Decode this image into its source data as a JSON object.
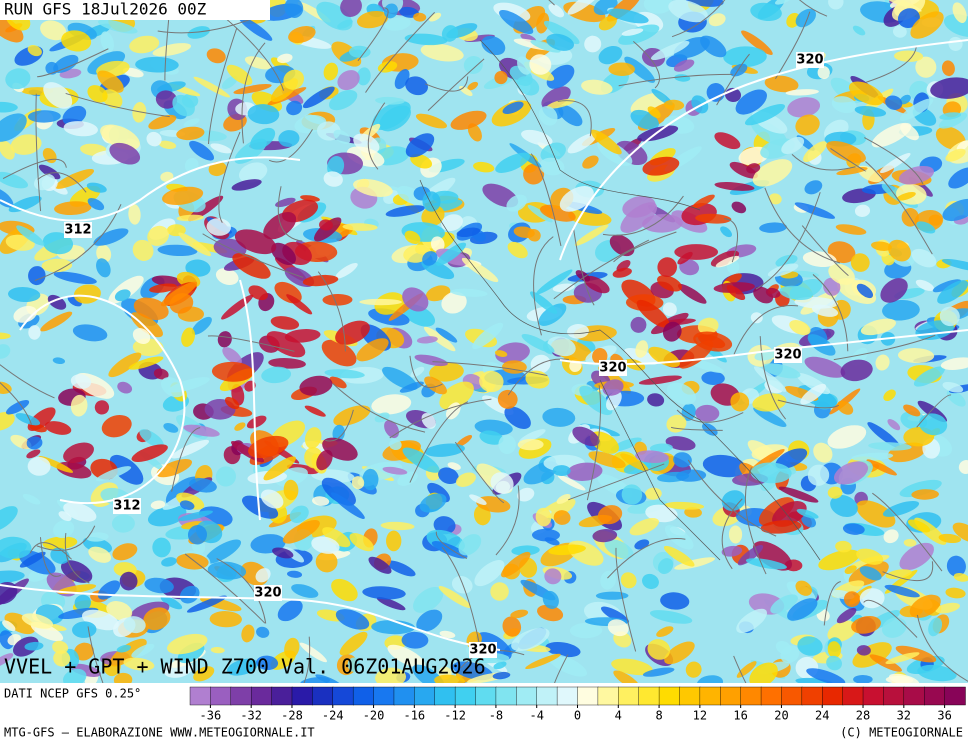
{
  "header": {
    "run": "RUN GFS 18Jul2026 00Z"
  },
  "map": {
    "contour_labels": [
      {
        "text": "320"
      },
      {
        "text": "312"
      },
      {
        "text": "320"
      },
      {
        "text": "320"
      },
      {
        "text": "312"
      },
      {
        "text": "320"
      },
      {
        "text": "320"
      }
    ]
  },
  "title": "VVEL + GPT + WIND Z700 Val. 06Z01AUG2026",
  "source": "DATI NCEP GFS 0.25°",
  "colorbar": {
    "range": [
      -38,
      38
    ],
    "ticks": [
      -36,
      -32,
      -28,
      -24,
      -20,
      -16,
      -12,
      -8,
      -4,
      0,
      4,
      8,
      12,
      16,
      20,
      24,
      28,
      32,
      36
    ],
    "colors": [
      "#b07fd0",
      "#9a5fc0",
      "#7e3fa8",
      "#6a2a9c",
      "#4a1f9a",
      "#2a1aa8",
      "#1a30c0",
      "#1548d8",
      "#1060e8",
      "#1878f0",
      "#2090f0",
      "#28a8f0",
      "#30c0f0",
      "#40d0f0",
      "#60dcf0",
      "#80e4f0",
      "#a0ecf4",
      "#c0f2f8",
      "#e0f8fc",
      "#fffde0",
      "#fff8a0",
      "#fff060",
      "#ffe830",
      "#ffdc00",
      "#ffc800",
      "#ffb400",
      "#ffa000",
      "#ff8800",
      "#ff7000",
      "#f85800",
      "#f04000",
      "#e82800",
      "#d81818",
      "#c81030",
      "#b8103c",
      "#a80c48",
      "#980850",
      "#880458"
    ]
  },
  "footer": {
    "left": "MTG-GFS — ELABORAZIONE WWW.METEOGIORNALE.IT",
    "right": "(C) METEOGIORNALE"
  }
}
